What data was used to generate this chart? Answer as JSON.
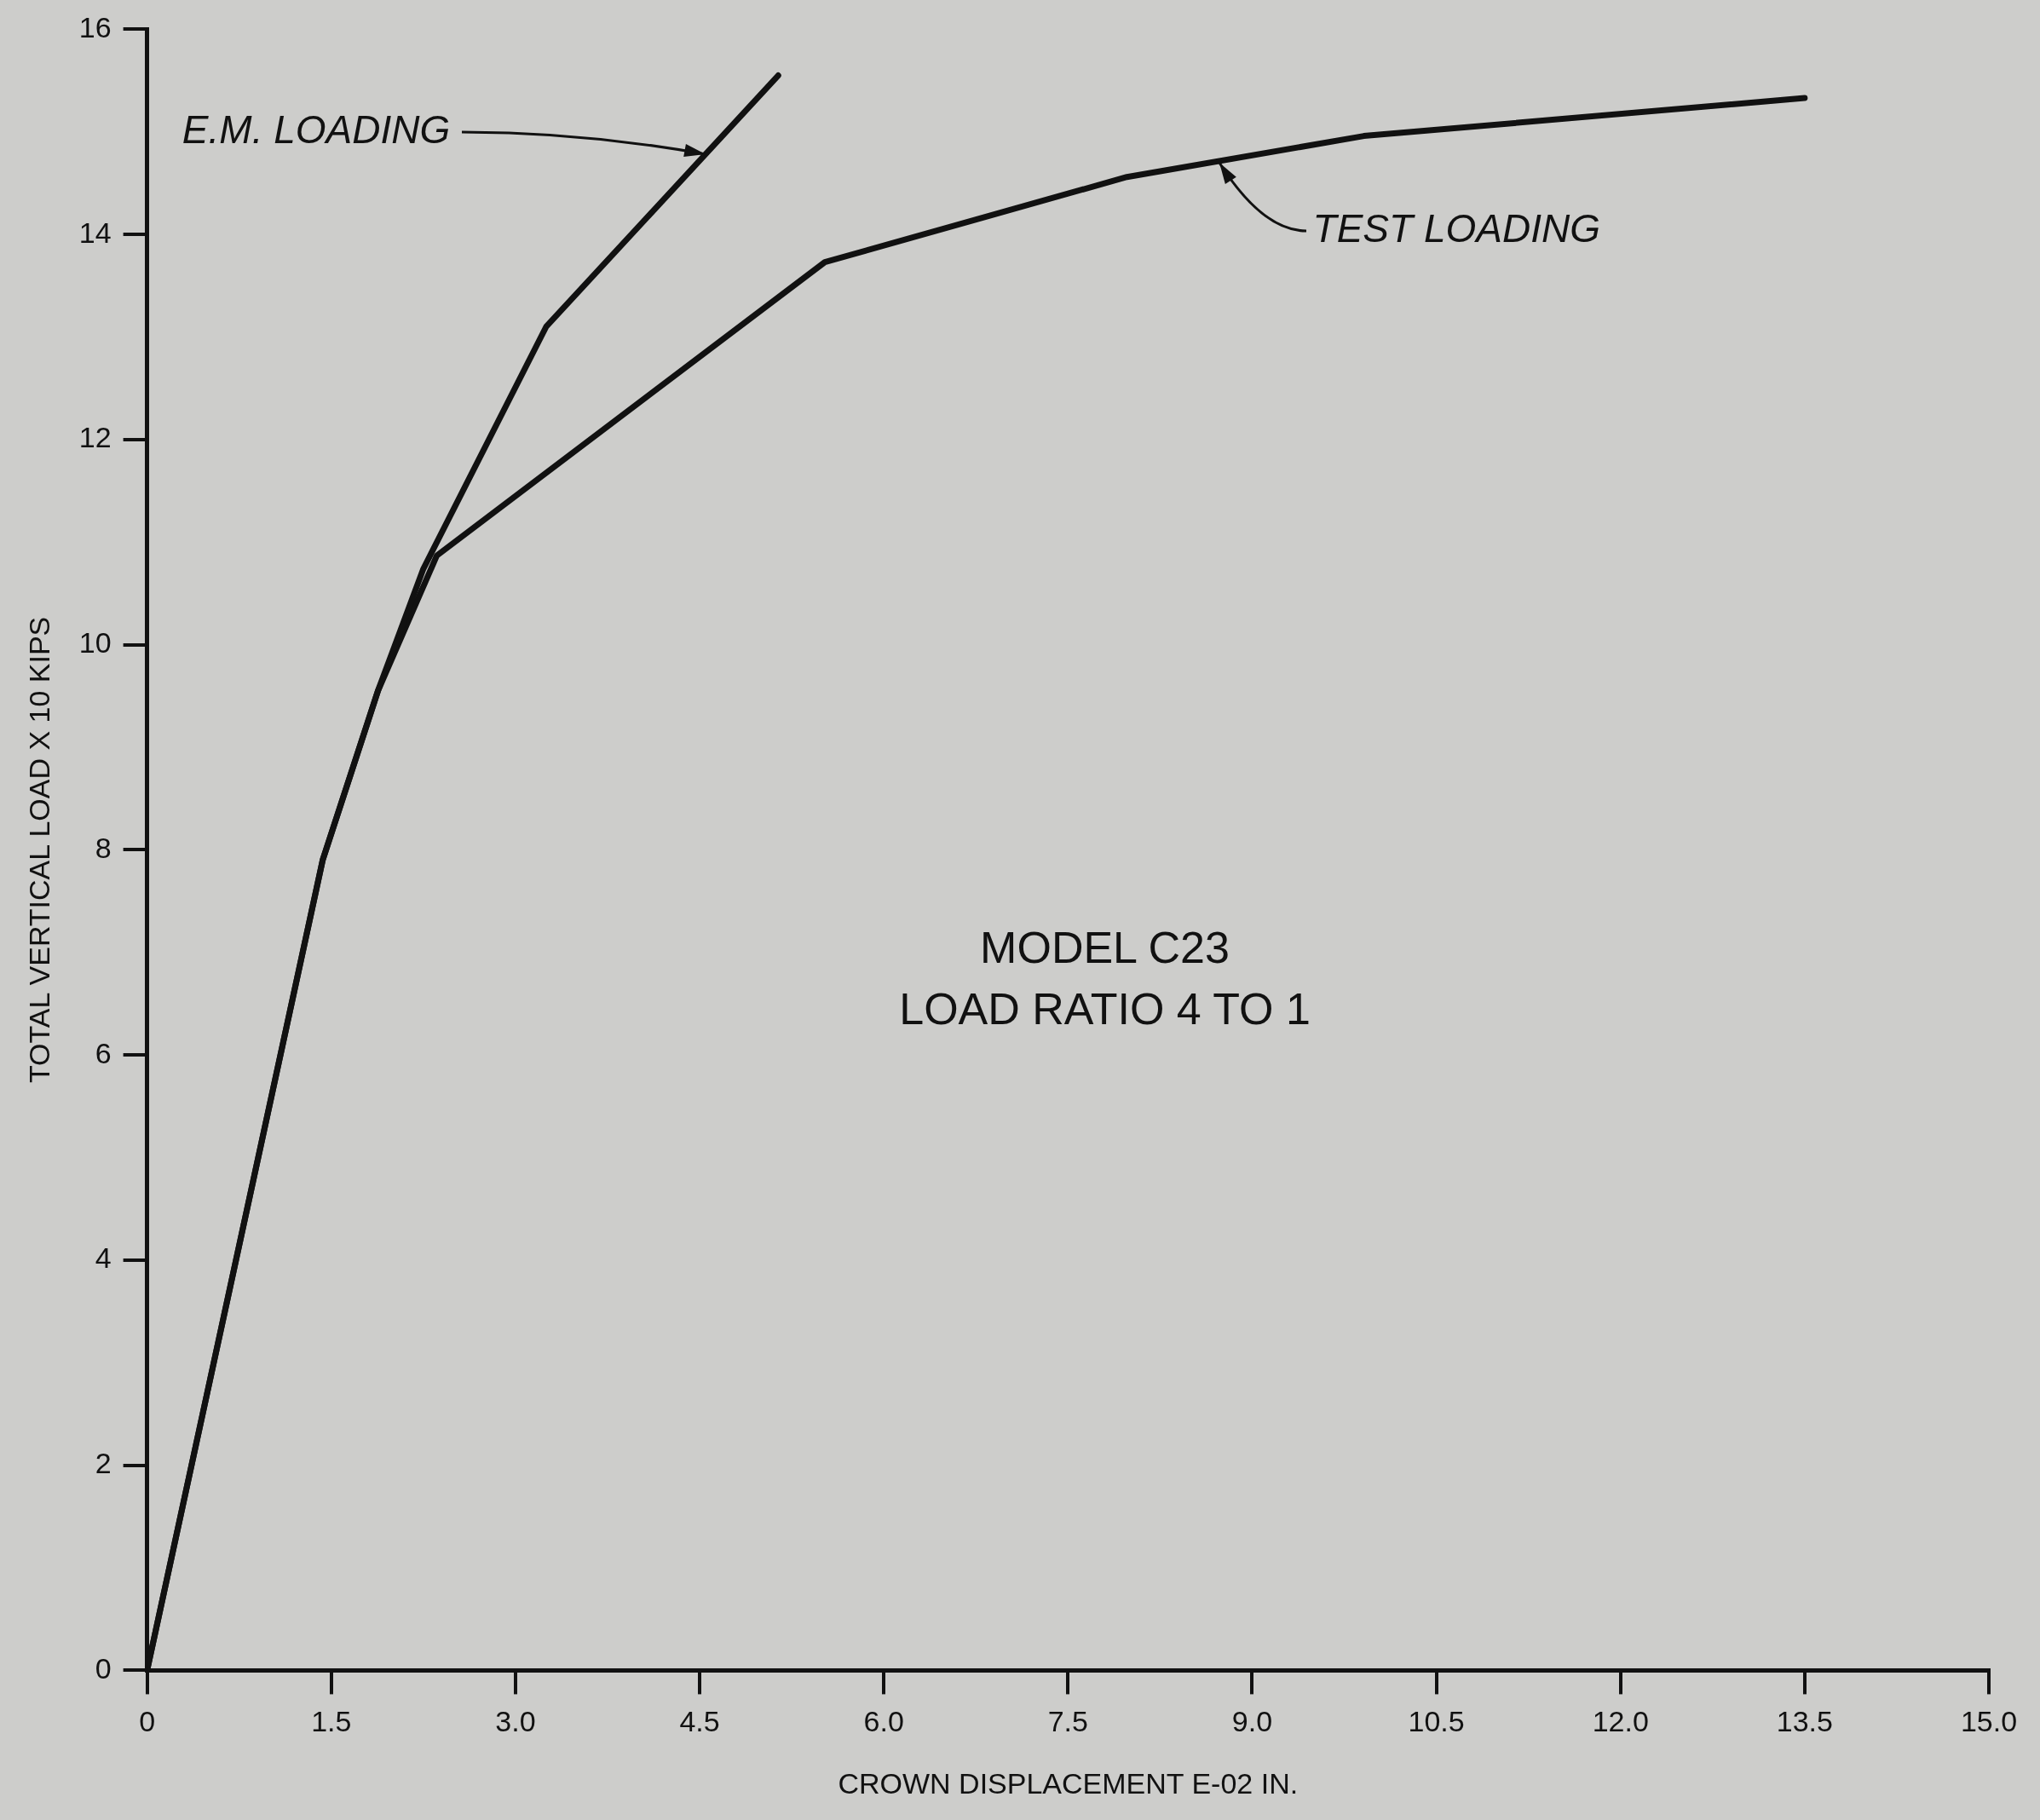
{
  "chart_data": {
    "type": "line",
    "xlabel": "CROWN DISPLACEMENT E-02 IN.",
    "ylabel": "TOTAL VERTICAL LOAD X 10 KIPS",
    "series": [
      {
        "color": "#111111",
        "x": [
          0,
          1.43,
          1.88,
          2.25,
          3.25,
          5.14
        ],
        "values": [
          0,
          7.9,
          9.55,
          10.74,
          13.1,
          15.55
        ]
      },
      {
        "color": "#111111",
        "x": [
          0,
          1.43,
          1.88,
          2.36,
          5.52,
          7.98,
          9.91,
          13.5
        ],
        "values": [
          0,
          7.9,
          9.55,
          10.87,
          13.73,
          14.56,
          14.96,
          15.33
        ]
      }
    ],
    "annotations": [
      {
        "text": "E.M. LOADING",
        "x": 4.55,
        "y": 14.78
      },
      {
        "text": "TEST LOADING",
        "x": 8.73,
        "y": 14.7
      },
      "MODEL C23",
      "LOAD RATIO 4 TO 1"
    ],
    "xlim": [
      0,
      15
    ],
    "ylim": [
      0,
      16
    ],
    "xticks": [
      0,
      1.5,
      {
        "value": 3,
        "label": "3.0"
      },
      4.5,
      {
        "value": 6,
        "label": "6.0"
      },
      7.5,
      {
        "value": 9,
        "label": "9.0"
      },
      10.5,
      {
        "value": 12,
        "label": "12.0"
      },
      13.5,
      {
        "value": 15,
        "label": "15.0"
      }
    ],
    "yticks": [
      0,
      2,
      4,
      6,
      8,
      10,
      12,
      14,
      16
    ],
    "grid": false,
    "legend": false,
    "marker": "none",
    "line_style": "solid"
  }
}
